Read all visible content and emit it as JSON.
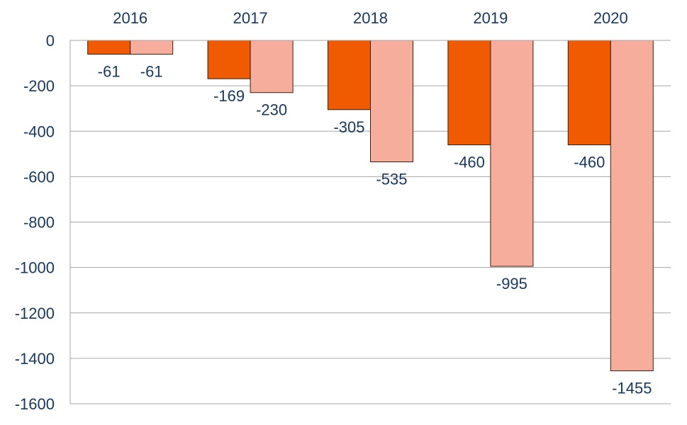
{
  "chart_data": {
    "type": "bar",
    "categories": [
      "2016",
      "2017",
      "2018",
      "2019",
      "2020"
    ],
    "series": [
      {
        "values": [
          -61,
          -169,
          -305,
          -460,
          -460
        ],
        "color": "#f05a00"
      },
      {
        "values": [
          -61,
          -230,
          -535,
          -995,
          -1455
        ],
        "color": "#f7ad9c"
      }
    ],
    "data_labels": [
      [
        "-61",
        "-169",
        "-305",
        "-460",
        "-460"
      ],
      [
        "-61",
        "-230",
        "-535",
        "-995",
        "-1455"
      ]
    ],
    "ylim": [
      -1600,
      0
    ],
    "yticks": [
      0,
      -200,
      -400,
      -600,
      -800,
      -1000,
      -1200,
      -1400,
      -1600
    ],
    "ytick_labels": [
      "0",
      "-200",
      "-400",
      "-600",
      "-800",
      "-1000",
      "-1200",
      "-1400",
      "-1600"
    ],
    "x_axis_position": "top",
    "grid": true,
    "grid_color": "#a6a6a6",
    "bar_edge_color": "#3b1f0f",
    "text_color": "#17375e",
    "title": "",
    "xlabel": "",
    "ylabel": ""
  }
}
